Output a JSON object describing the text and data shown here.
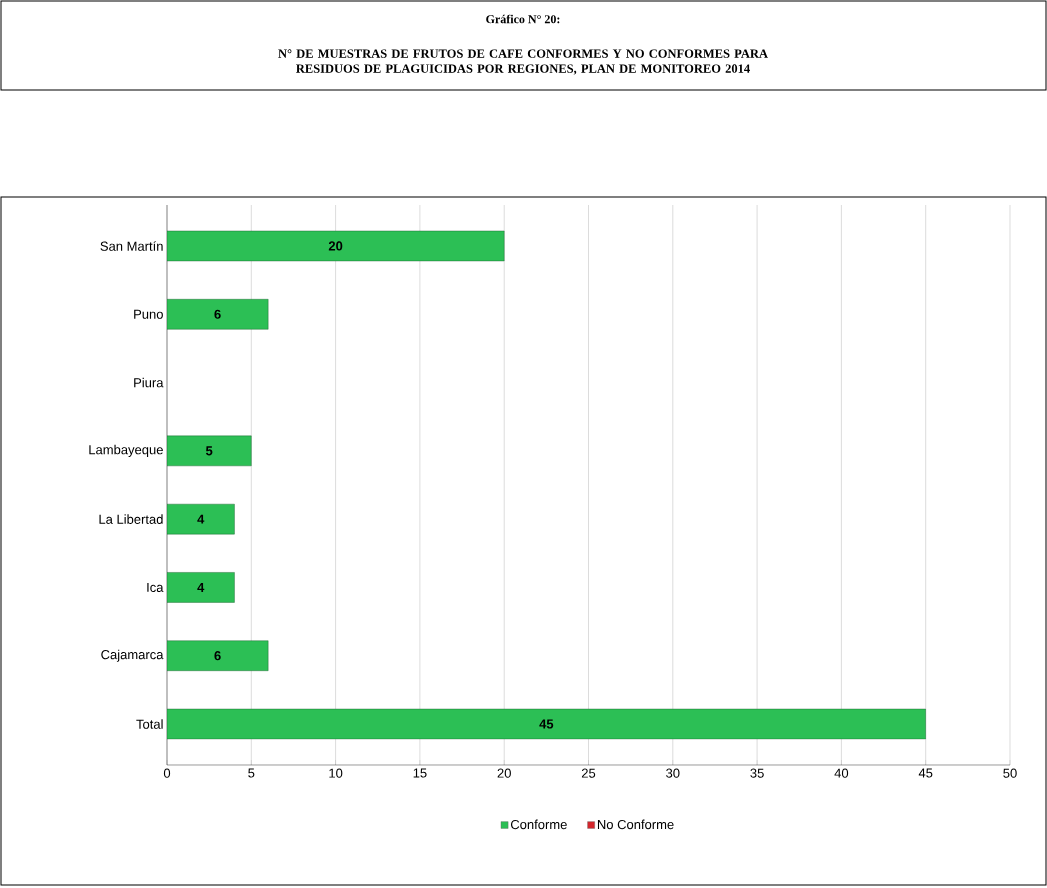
{
  "chart_data": {
    "type": "bar",
    "orientation": "horizontal",
    "stacked": true,
    "title": "Gráfico N° 20:",
    "subtitle": "N° DE MUESTRAS DE FRUTOS DE CAFE CONFORMES Y NO CONFORMES PARA RESIDUOS DE PLAGUICIDAS POR REGIONES, PLAN DE MONITOREO 2014",
    "categories": [
      "San Martín",
      "Puno",
      "Piura",
      "Lambayeque",
      "La Libertad",
      "Ica",
      "Cajamarca",
      "Total"
    ],
    "series": [
      {
        "name": "Conforme",
        "color": "#2cbf55",
        "values": [
          20,
          6,
          null,
          5,
          4,
          4,
          6,
          45
        ],
        "value_labels": [
          "20",
          "6",
          null,
          "5",
          "4",
          "4",
          "6",
          "45"
        ]
      },
      {
        "name": "No Conforme",
        "color": "#d4262c",
        "values": [
          0,
          0,
          null,
          0,
          0,
          0,
          0,
          0
        ]
      }
    ],
    "xlim": [
      0,
      50
    ],
    "xticks": [
      0,
      5,
      10,
      15,
      20,
      25,
      30,
      35,
      40,
      45,
      50
    ],
    "grid": "x",
    "legend": "bottom"
  }
}
